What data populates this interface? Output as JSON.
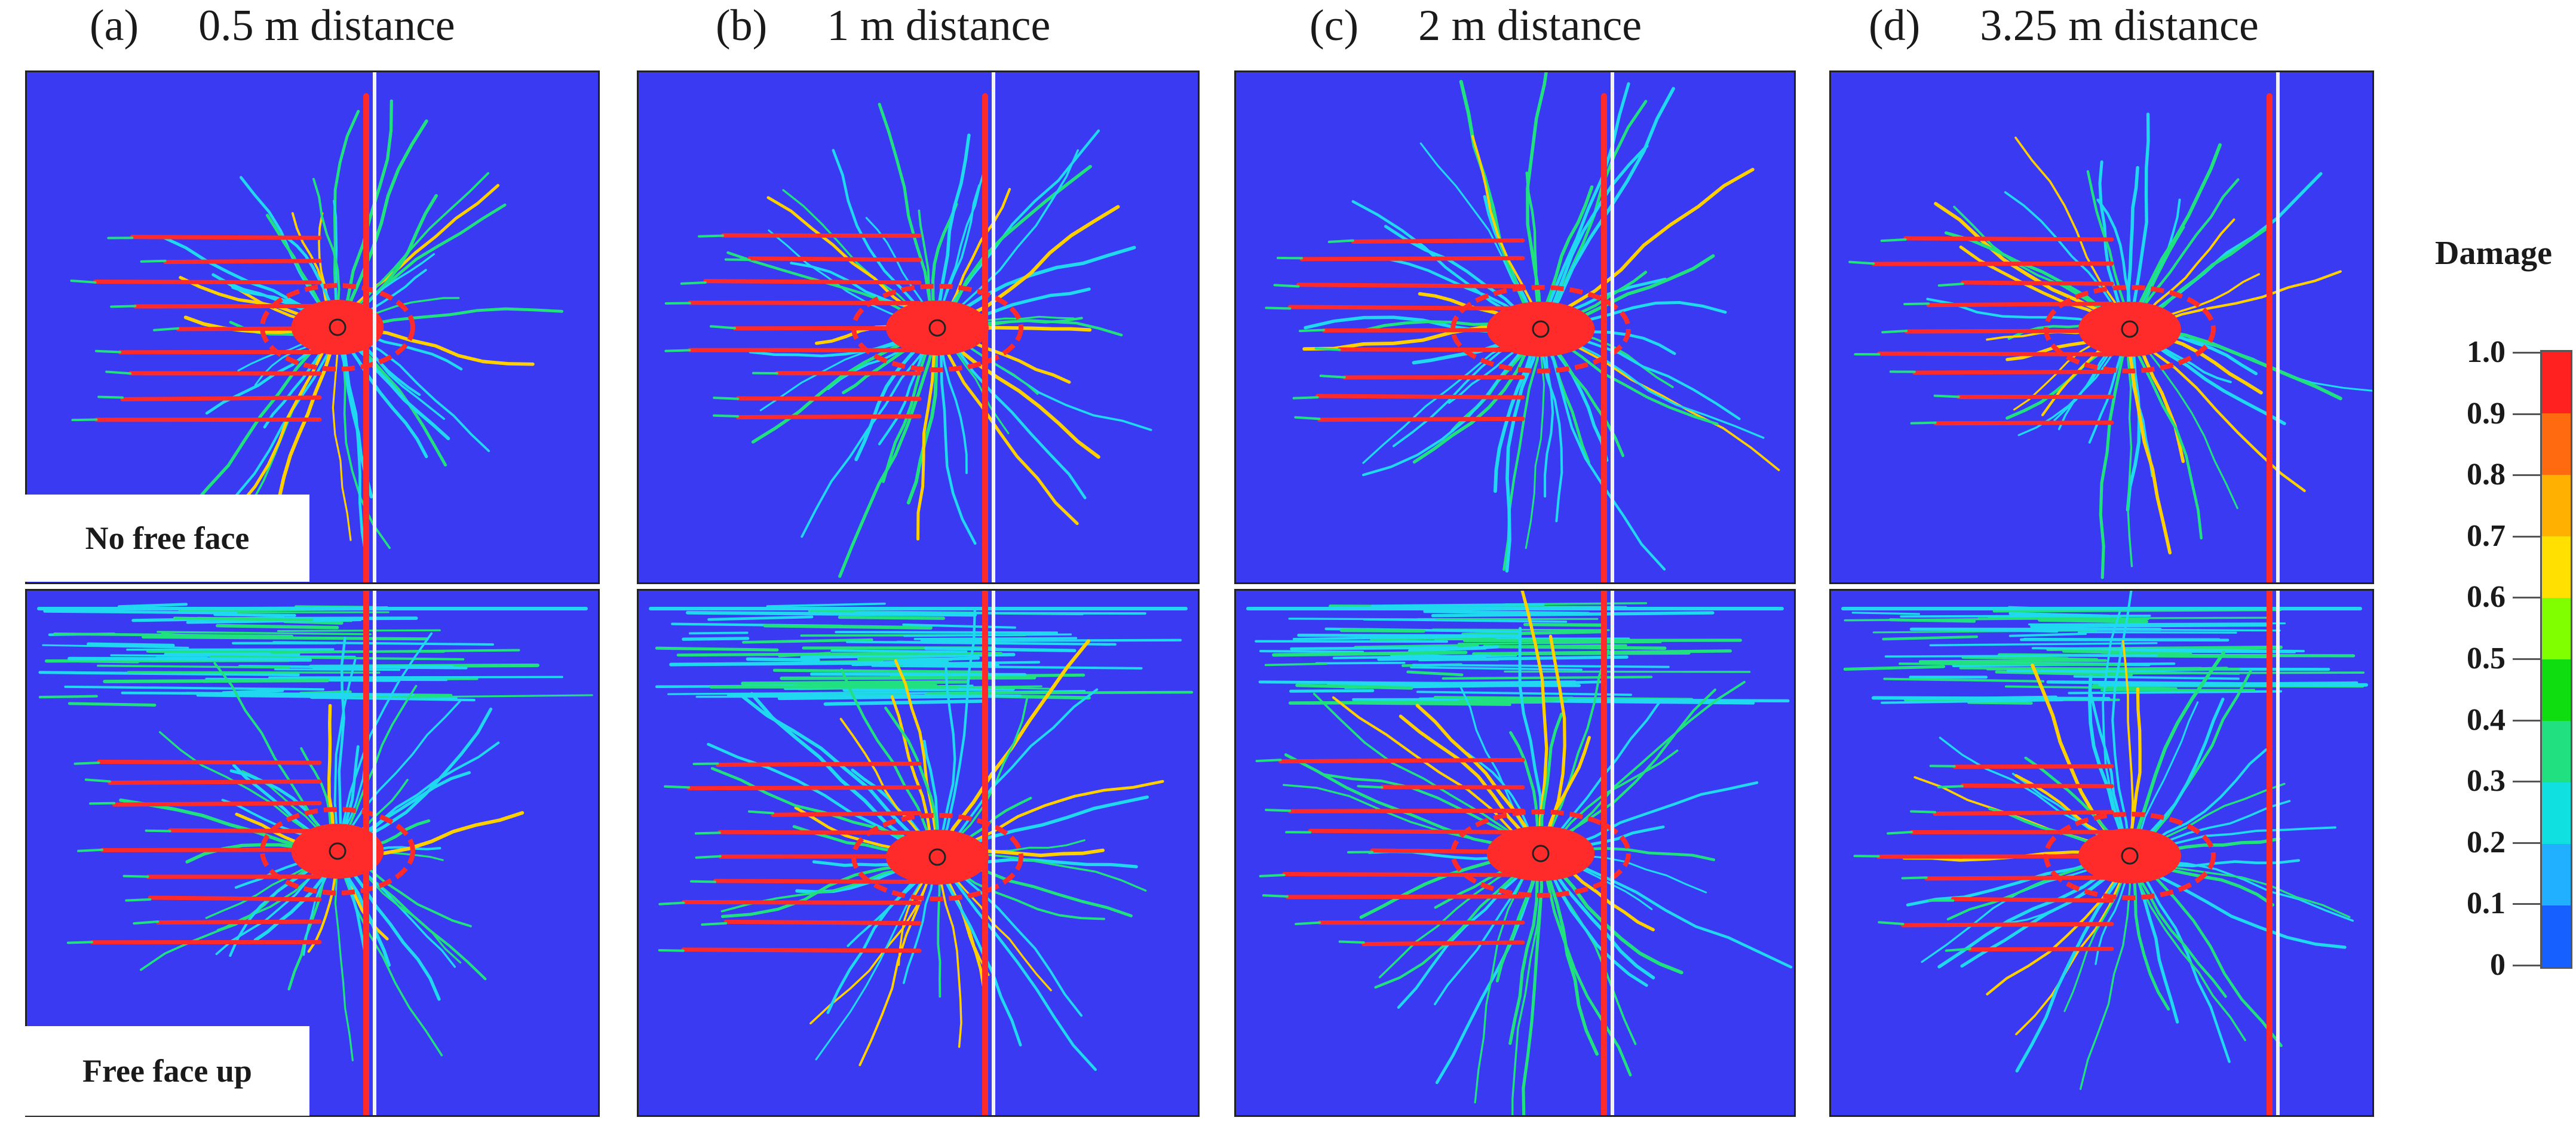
{
  "panels": [
    {
      "label": "(a)",
      "title": "0.5 m distance"
    },
    {
      "label": "(b)",
      "title": "1 m distance"
    },
    {
      "label": "(c)",
      "title": "2 m distance"
    },
    {
      "label": "(d)",
      "title": "3.25 m distance"
    }
  ],
  "rows": [
    {
      "label": "No free face"
    },
    {
      "label": "Free face up"
    }
  ],
  "legend": {
    "title": "Damage",
    "ticks": [
      "1.0",
      "0.9",
      "0.8",
      "0.7",
      "0.6",
      "0.5",
      "0.4",
      "0.3",
      "0.2",
      "0.1",
      "0"
    ],
    "colors": [
      "#ff2020",
      "#ff6a10",
      "#ffb000",
      "#ffe000",
      "#80ff00",
      "#10dd10",
      "#20e080",
      "#10e0e0",
      "#20b0ff",
      "#1560ff",
      "#0a1ae0"
    ]
  },
  "colors": {
    "background": "#3a3af2",
    "high_damage": "#ff2a2a",
    "mid_damage": "#20e080",
    "low_damage": "#20d8f0",
    "joint": "#f2f2f2"
  }
}
